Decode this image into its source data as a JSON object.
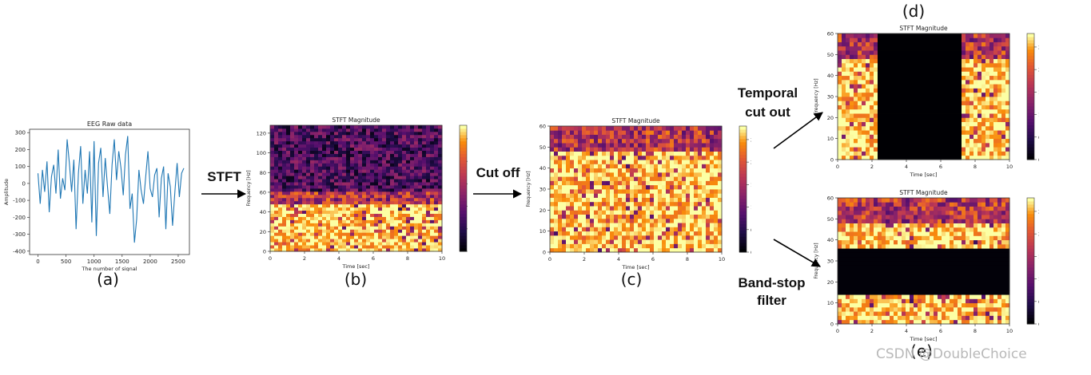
{
  "colors": {
    "line": "#1f77b4",
    "arrow": "#000000",
    "background": "#ffffff",
    "colormap": "inferno"
  },
  "labels": {
    "a": "(a)",
    "b": "(b)",
    "c": "(c)",
    "d": "(d)",
    "e": "(e)",
    "stft": "STFT",
    "cutoff": "Cut off",
    "temporal": "Temporal cut out",
    "bandstop": "Band-stop filter"
  },
  "watermark": "CSDN @DoubleChoice",
  "chart_data": [
    {
      "id": "a",
      "type": "line",
      "title": "EEG Raw data",
      "xlabel": "The number of signal",
      "ylabel": "Amplitude",
      "xlim": [
        -150,
        2700
      ],
      "ylim": [
        -420,
        320
      ],
      "xticks": [
        0,
        500,
        1000,
        1500,
        2000,
        2500
      ],
      "yticks": [
        300,
        200,
        100,
        0,
        -100,
        -200,
        -300,
        -400
      ],
      "series": [
        {
          "x": [
            0,
            40,
            80,
            120,
            160,
            200,
            240,
            280,
            320,
            360,
            400,
            440,
            480,
            520,
            560,
            600,
            640,
            680,
            720,
            760,
            800,
            840,
            880,
            920,
            960,
            1000,
            1040,
            1080,
            1120,
            1160,
            1200,
            1240,
            1280,
            1320,
            1360,
            1400,
            1440,
            1480,
            1520,
            1560,
            1600,
            1640,
            1680,
            1720,
            1760,
            1800,
            1840,
            1880,
            1920,
            1960,
            2000,
            2040,
            2080,
            2120,
            2160,
            2200,
            2240,
            2280,
            2320,
            2360,
            2400,
            2440,
            2480,
            2520,
            2560,
            2600
          ],
          "y": [
            60,
            -120,
            80,
            -50,
            130,
            -170,
            40,
            110,
            -60,
            200,
            -90,
            30,
            -40,
            260,
            120,
            -50,
            140,
            -270,
            60,
            220,
            -120,
            80,
            -60,
            190,
            -230,
            250,
            -310,
            120,
            210,
            -80,
            150,
            -20,
            -180,
            110,
            260,
            20,
            190,
            90,
            -70,
            170,
            280,
            -150,
            -60,
            -350,
            -210,
            80,
            -40,
            -120,
            40,
            190,
            -30,
            -80,
            50,
            90,
            -200,
            30,
            100,
            -270,
            60,
            -20,
            -250,
            -50,
            120,
            -80,
            60,
            90
          ]
        }
      ]
    },
    {
      "id": "b",
      "type": "heatmap",
      "title": "STFT Magnitude",
      "xlabel": "Time [sec]",
      "ylabel": "Frequency [Hz]",
      "xlim": [
        0,
        10
      ],
      "ylim": [
        0,
        128
      ],
      "xticks": [
        0,
        2,
        4,
        6,
        8,
        10
      ],
      "yticks": [
        0,
        20,
        40,
        60,
        80,
        100,
        120
      ],
      "colorbar": {
        "range": [
          0,
          2.8
        ],
        "ticks": [
          0.0,
          0.5,
          1.0,
          1.5,
          2.0,
          2.5
        ]
      },
      "description": "high magnitude below ~48 Hz, low magnitude above"
    },
    {
      "id": "c",
      "type": "heatmap",
      "title": "STFT Magnitude",
      "xlabel": "Time [sec]",
      "ylabel": "Frequency [Hz]",
      "xlim": [
        0,
        10
      ],
      "ylim": [
        0,
        60
      ],
      "xticks": [
        0,
        2,
        4,
        6,
        8,
        10
      ],
      "yticks": [
        0,
        10,
        20,
        30,
        40,
        50,
        60
      ],
      "colorbar": {
        "range": [
          0,
          2.8
        ],
        "ticks": [
          0.0,
          0.5,
          1.0,
          1.5,
          2.0,
          2.5
        ]
      },
      "description": "frequencies cut to 0-60 Hz; high magnitude below ~48 Hz"
    },
    {
      "id": "d",
      "type": "heatmap",
      "title": "STFT Magnitude",
      "xlabel": "Time [sec]",
      "ylabel": "Frequency [Hz]",
      "xlim": [
        0,
        10
      ],
      "ylim": [
        0,
        60
      ],
      "xticks": [
        0,
        2,
        4,
        6,
        8,
        10
      ],
      "yticks": [
        0,
        10,
        20,
        30,
        40,
        50,
        60
      ],
      "colorbar": {
        "range": [
          0,
          2.8
        ],
        "ticks": [
          0.0,
          0.5,
          1.0,
          1.5,
          2.0,
          2.5
        ]
      },
      "masked_time": [
        2.1,
        7.1
      ]
    },
    {
      "id": "e",
      "type": "heatmap",
      "title": "STFT Magnitude",
      "xlabel": "Time [sec]",
      "ylabel": "Frequency [Hz]",
      "xlim": [
        0,
        10
      ],
      "ylim": [
        0,
        60
      ],
      "xticks": [
        0,
        2,
        4,
        6,
        8,
        10
      ],
      "yticks": [
        0,
        10,
        20,
        30,
        40,
        50,
        60
      ],
      "colorbar": {
        "range": [
          0,
          2.8
        ],
        "ticks": [
          0.0,
          0.5,
          1.0,
          1.5,
          2.0,
          2.5
        ]
      },
      "masked_freq": [
        15,
        35
      ]
    }
  ]
}
